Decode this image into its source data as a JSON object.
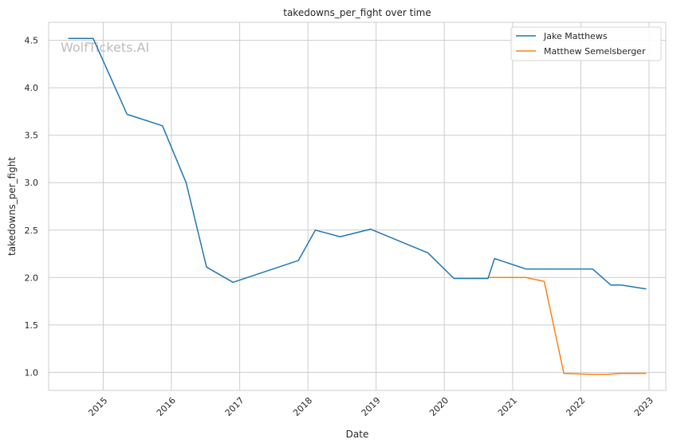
{
  "chart_data": {
    "type": "line",
    "title": "takedowns_per_fight over time",
    "xlabel": "Date",
    "ylabel": "takedowns_per_fight",
    "watermark": "WolfTickets.AI",
    "x_ticks": [
      "2015",
      "2016",
      "2017",
      "2018",
      "2019",
      "2020",
      "2021",
      "2022",
      "2023"
    ],
    "y_ticks": [
      "1.0",
      "1.5",
      "2.0",
      "2.5",
      "3.0",
      "3.5",
      "4.0",
      "4.5"
    ],
    "xlim": [
      "2014-03-15",
      "2023-04-01"
    ],
    "ylim": [
      0.81,
      4.69
    ],
    "grid": true,
    "legend_position": "top-right",
    "series": [
      {
        "name": "Jake Matthews",
        "color": "#1f77b4",
        "points": [
          [
            "2014-06-28",
            4.52
          ],
          [
            "2014-11-08",
            4.52
          ],
          [
            "2015-05-09",
            3.72
          ],
          [
            "2015-11-14",
            3.6
          ],
          [
            "2016-03-20",
            3.0
          ],
          [
            "2016-07-07",
            2.11
          ],
          [
            "2016-11-26",
            1.95
          ],
          [
            "2017-11-11",
            2.18
          ],
          [
            "2018-02-10",
            2.5
          ],
          [
            "2018-06-23",
            2.43
          ],
          [
            "2018-12-02",
            2.51
          ],
          [
            "2019-10-05",
            2.26
          ],
          [
            "2020-02-22",
            1.99
          ],
          [
            "2020-08-22",
            1.99
          ],
          [
            "2020-09-26",
            2.2
          ],
          [
            "2021-03-13",
            2.09
          ],
          [
            "2022-03-05",
            2.09
          ],
          [
            "2022-06-11",
            1.92
          ],
          [
            "2022-08-06",
            1.92
          ],
          [
            "2022-12-17",
            1.88
          ]
        ]
      },
      {
        "name": "Matthew Semelsberger",
        "color": "#ff7f0e",
        "points": [
          [
            "2020-08-29",
            2.0
          ],
          [
            "2021-03-13",
            2.0
          ],
          [
            "2021-06-19",
            1.96
          ],
          [
            "2021-10-02",
            0.99
          ],
          [
            "2022-02-19",
            0.98
          ],
          [
            "2022-05-21",
            0.98
          ],
          [
            "2022-07-30",
            0.99
          ],
          [
            "2022-12-17",
            0.99
          ]
        ]
      }
    ]
  }
}
